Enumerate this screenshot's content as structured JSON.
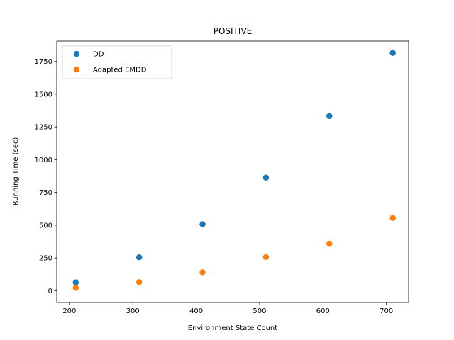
{
  "chart_data": {
    "type": "scatter",
    "title": "POSITIVE",
    "xlabel": "Environment State Count",
    "ylabel": "Running Time (sec)",
    "xlim": [
      180,
      735
    ],
    "ylim": [
      -90,
      1905
    ],
    "xticks": [
      200,
      300,
      400,
      500,
      600,
      700
    ],
    "yticks": [
      0,
      250,
      500,
      750,
      1000,
      1250,
      1500,
      1750
    ],
    "grid": false,
    "legend_position": "top-left",
    "series": [
      {
        "name": "DD",
        "color": "#1f77b4",
        "x": [
          210,
          310,
          410,
          510,
          610,
          710
        ],
        "y": [
          63,
          255,
          507,
          863,
          1333,
          1815
        ]
      },
      {
        "name": "Adapted EMDD",
        "color": "#ff7f0e",
        "x": [
          210,
          310,
          410,
          510,
          610,
          710
        ],
        "y": [
          22,
          65,
          140,
          257,
          358,
          555
        ]
      }
    ]
  }
}
